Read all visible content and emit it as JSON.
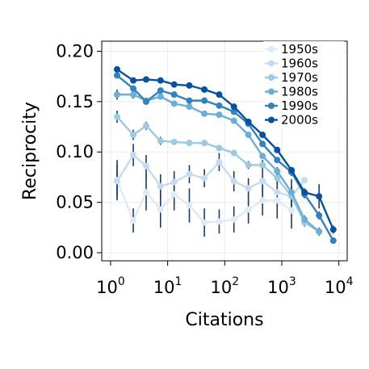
{
  "chart_data": {
    "type": "line",
    "xlabel": "Citations",
    "ylabel": "Reciprocity",
    "x_scale": "log10",
    "xlim": [
      0.7,
      14000
    ],
    "ylim": [
      -0.008,
      0.21
    ],
    "x_ticks": [
      1,
      10,
      100,
      1000,
      10000
    ],
    "x_tick_labels": [
      {
        "base": "10",
        "exp": "0"
      },
      {
        "base": "10",
        "exp": "1"
      },
      {
        "base": "10",
        "exp": "2"
      },
      {
        "base": "10",
        "exp": "3"
      },
      {
        "base": "10",
        "exp": "4"
      }
    ],
    "y_ticks": [
      0.0,
      0.05,
      0.1,
      0.15,
      0.2
    ],
    "y_tick_labels": [
      "0.00",
      "0.05",
      "0.10",
      "0.15",
      "0.20"
    ],
    "grid": true,
    "legend_position": "top-right",
    "series": [
      {
        "name": "1950s",
        "color": "#deebf7",
        "x": [
          1.3,
          2.5,
          4.2,
          7.5,
          13,
          24,
          44,
          80,
          145,
          260,
          460,
          830,
          1480
        ],
        "y": [
          0.072,
          0.032,
          0.06,
          0.043,
          0.058,
          0.047,
          0.03,
          0.031,
          0.033,
          0.043,
          0.052,
          0.052,
          0.042
        ],
        "err": [
          0.02,
          0.012,
          0.018,
          0.018,
          0.016,
          0.017,
          0.014,
          0.012,
          0.013,
          0.014,
          0.015,
          0.018,
          0.018
        ]
      },
      {
        "name": "1960s",
        "color": "#c6dbef",
        "x": [
          1.3,
          2.5,
          4.2,
          7.5,
          13,
          24,
          44,
          80,
          145,
          260,
          460,
          830,
          1480,
          2500
        ],
        "y": [
          0.071,
          0.097,
          0.086,
          0.066,
          0.07,
          0.078,
          0.074,
          0.09,
          0.071,
          0.064,
          0.071,
          0.06,
          0.056,
          0.072
        ],
        "err": [
          0.016,
          0.011,
          0.011,
          0.012,
          0.011,
          0.009,
          0.009,
          0.009,
          0.01,
          0.01,
          0.012,
          0.014,
          0.017,
          0.0
        ]
      },
      {
        "name": "1970s",
        "color": "#9ecae1",
        "x": [
          1.3,
          2.5,
          4.2,
          7.5,
          13,
          24,
          44,
          80,
          145,
          260,
          460,
          830,
          1480,
          2500,
          4500
        ],
        "y": [
          0.135,
          0.117,
          0.126,
          0.111,
          0.11,
          0.109,
          0.109,
          0.104,
          0.099,
          0.087,
          0.087,
          0.074,
          0.056,
          0.03,
          0.021
        ],
        "err": [
          0.006,
          0.005,
          0.004,
          0.004,
          0.003,
          0.003,
          0.003,
          0.003,
          0.003,
          0.004,
          0.005,
          0.006,
          0.008,
          0.004,
          0.004
        ]
      },
      {
        "name": "1980s",
        "color": "#6baed6",
        "x": [
          1.3,
          2.5,
          4.2,
          7.5,
          13,
          24,
          44,
          80,
          145,
          260,
          460,
          830,
          1480,
          2500,
          4500
        ],
        "y": [
          0.157,
          0.157,
          0.151,
          0.155,
          0.148,
          0.145,
          0.138,
          0.137,
          0.131,
          0.117,
          0.096,
          0.081,
          0.06,
          0.033,
          0.021
        ],
        "err": [
          0.005,
          0.004,
          0.003,
          0.003,
          0.003,
          0.002,
          0.002,
          0.002,
          0.002,
          0.002,
          0.003,
          0.004,
          0.006,
          0.004,
          0.003
        ]
      },
      {
        "name": "1990s",
        "color": "#3182bd",
        "x": [
          1.3,
          2.5,
          4.2,
          7.5,
          13,
          24,
          44,
          80,
          145,
          260,
          460,
          830,
          1480,
          2500,
          4500,
          8000
        ],
        "y": [
          0.176,
          0.163,
          0.15,
          0.161,
          0.157,
          0.151,
          0.151,
          0.146,
          0.14,
          0.128,
          0.108,
          0.092,
          0.08,
          0.058,
          0.037,
          0.012
        ],
        "err": [
          0.003,
          0.002,
          0.002,
          0.002,
          0.002,
          0.002,
          0.002,
          0.002,
          0.002,
          0.002,
          0.003,
          0.003,
          0.004,
          0.004,
          0.004,
          0.002
        ]
      },
      {
        "name": "2000s",
        "color": "#08519c",
        "x": [
          1.3,
          2.5,
          4.2,
          7.5,
          13,
          24,
          44,
          80,
          145,
          260,
          460,
          830,
          1480,
          2500,
          4500,
          8000
        ],
        "y": [
          0.182,
          0.171,
          0.172,
          0.171,
          0.167,
          0.166,
          0.162,
          0.157,
          0.145,
          0.13,
          0.117,
          0.102,
          0.082,
          0.06,
          0.056,
          0.023
        ],
        "err": [
          0.002,
          0.002,
          0.002,
          0.002,
          0.002,
          0.002,
          0.002,
          0.002,
          0.002,
          0.002,
          0.002,
          0.003,
          0.003,
          0.004,
          0.012,
          0.004
        ]
      }
    ]
  }
}
